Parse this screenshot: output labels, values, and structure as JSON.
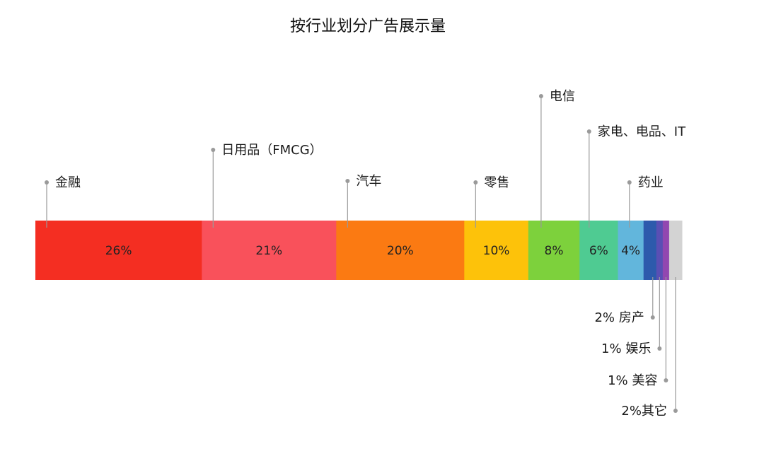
{
  "chart_data": {
    "type": "bar",
    "orientation": "stacked-horizontal-100",
    "title": "按行业划分广告展示量",
    "categories": [
      "金融",
      "日用品（FMCG）",
      "汽车",
      "零售",
      "电信",
      "家电、电品、IT",
      "药业",
      "房产",
      "娱乐",
      "美容",
      "其它"
    ],
    "values": [
      26,
      21,
      20,
      10,
      8,
      6,
      4,
      2,
      1,
      1,
      2
    ],
    "value_labels": [
      "26%",
      "21%",
      "20%",
      "10%",
      "8%",
      "6%",
      "4%",
      "2%",
      "1%",
      "1%",
      "2%"
    ],
    "colors": [
      "#f42e22",
      "#f9515b",
      "#fb7a12",
      "#fdc20a",
      "#7dd13c",
      "#4fcb92",
      "#62b6dc",
      "#2d5aac",
      "#5a4fb4",
      "#9247b0",
      "#d3d3d3"
    ],
    "label_position": [
      "top",
      "top",
      "top",
      "top",
      "top",
      "top",
      "top",
      "bottom",
      "bottom",
      "bottom",
      "bottom"
    ],
    "bottom_labels": [
      "2% 房产",
      "1% 娱乐",
      "1% 美容",
      "2%其它"
    ],
    "legend": "none",
    "grid": false,
    "xlim": [
      0,
      100
    ]
  }
}
